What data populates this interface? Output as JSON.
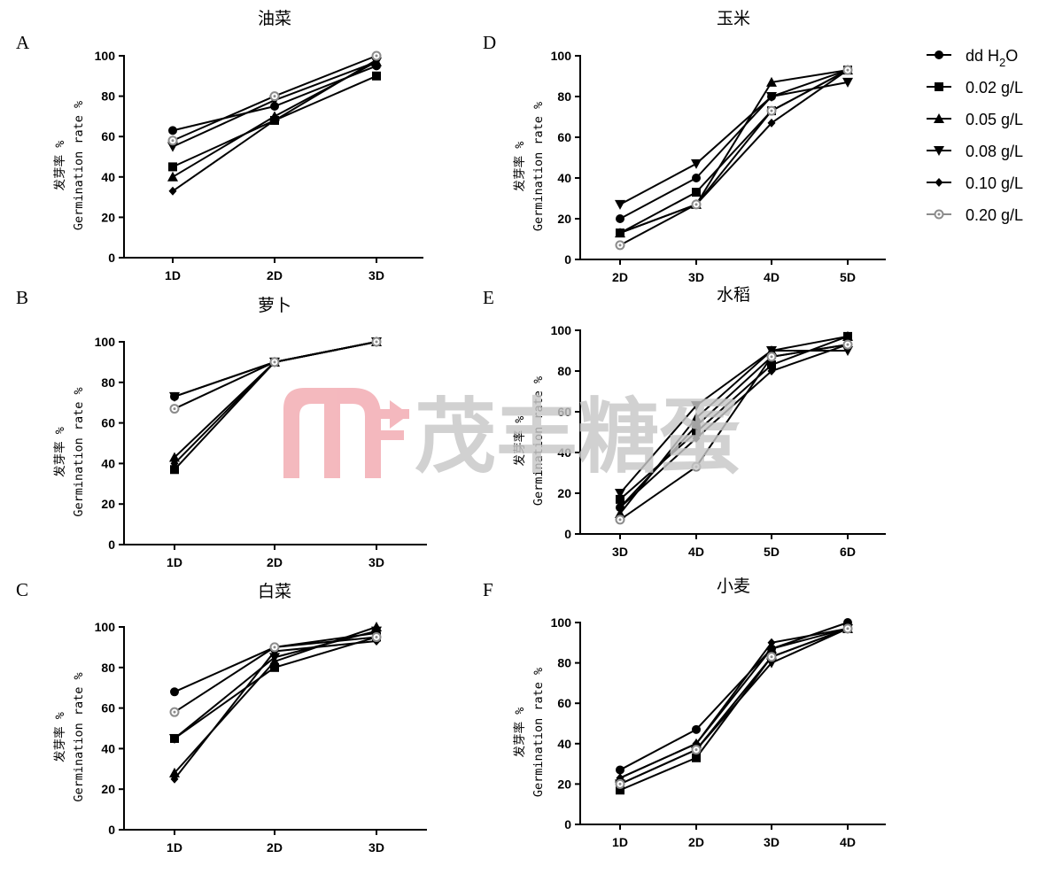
{
  "colors": {
    "line": "#000000",
    "hollow_marker": "#8c8c8c",
    "watermark_logo": "#f2a9b0",
    "watermark_text": "#c7c7c7"
  },
  "legend": {
    "items": [
      {
        "label": "dd H",
        "subscript": "2",
        "suffix": "O",
        "marker": "circle"
      },
      {
        "label": "0.02 g/L",
        "marker": "square"
      },
      {
        "label": "0.05 g/L",
        "marker": "triangle-up"
      },
      {
        "label": "0.08 g/L",
        "marker": "triangle-down"
      },
      {
        "label": "0.10 g/L",
        "marker": "diamond"
      },
      {
        "label": "0.20 g/L",
        "marker": "hollow-circle"
      }
    ]
  },
  "watermark": {
    "text": "茂丰糖蛋",
    "logo": "mf-logo"
  },
  "chart_data": [
    {
      "letter": "A",
      "title": "油菜",
      "type": "line",
      "ylabel_cn": "发芽率 %",
      "ylabel_en": "Germination rate %",
      "ylim": [
        0,
        100
      ],
      "yticks": [
        0,
        20,
        40,
        60,
        80,
        100
      ],
      "categories": [
        "1D",
        "2D",
        "3D"
      ],
      "series": [
        {
          "name": "dd H2O",
          "marker": "circle",
          "values": [
            63,
            75,
            95
          ]
        },
        {
          "name": "0.02 g/L",
          "marker": "square",
          "values": [
            45,
            68,
            90
          ]
        },
        {
          "name": "0.05 g/L",
          "marker": "triangle-up",
          "values": [
            40,
            70,
            97
          ]
        },
        {
          "name": "0.08 g/L",
          "marker": "triangle-down",
          "values": [
            55,
            78,
            97
          ]
        },
        {
          "name": "0.10 g/L",
          "marker": "diamond",
          "values": [
            33,
            68,
            98
          ]
        },
        {
          "name": "0.20 g/L",
          "marker": "hollow-circle",
          "values": [
            58,
            80,
            100
          ]
        }
      ]
    },
    {
      "letter": "B",
      "title": "萝卜",
      "type": "line",
      "ylabel_cn": "发芽率 %",
      "ylabel_en": "Germination rate %",
      "ylim": [
        0,
        100
      ],
      "yticks": [
        0,
        20,
        40,
        60,
        80,
        100
      ],
      "categories": [
        "1D",
        "2D",
        "3D"
      ],
      "series": [
        {
          "name": "dd H2O",
          "marker": "circle",
          "values": [
            73,
            90,
            100
          ]
        },
        {
          "name": "0.02 g/L",
          "marker": "square",
          "values": [
            37,
            90,
            100
          ]
        },
        {
          "name": "0.05 g/L",
          "marker": "triangle-up",
          "values": [
            43,
            90,
            100
          ]
        },
        {
          "name": "0.08 g/L",
          "marker": "triangle-down",
          "values": [
            73,
            90,
            100
          ]
        },
        {
          "name": "0.10 g/L",
          "marker": "diamond",
          "values": [
            40,
            90,
            100
          ]
        },
        {
          "name": "0.20 g/L",
          "marker": "hollow-circle",
          "values": [
            67,
            90,
            100
          ]
        }
      ]
    },
    {
      "letter": "C",
      "title": "白菜",
      "type": "line",
      "ylabel_cn": "发芽率 %",
      "ylabel_en": "Germination rate %",
      "ylim": [
        0,
        100
      ],
      "yticks": [
        0,
        20,
        40,
        60,
        80,
        100
      ],
      "categories": [
        "1D",
        "2D",
        "3D"
      ],
      "series": [
        {
          "name": "dd H2O",
          "marker": "circle",
          "values": [
            68,
            90,
            97
          ]
        },
        {
          "name": "0.02 g/L",
          "marker": "square",
          "values": [
            45,
            80,
            95
          ]
        },
        {
          "name": "0.05 g/L",
          "marker": "triangle-up",
          "values": [
            28,
            83,
            100
          ]
        },
        {
          "name": "0.08 g/L",
          "marker": "triangle-down",
          "values": [
            45,
            85,
            98
          ]
        },
        {
          "name": "0.10 g/L",
          "marker": "diamond",
          "values": [
            25,
            88,
            93
          ]
        },
        {
          "name": "0.20 g/L",
          "marker": "hollow-circle",
          "values": [
            58,
            90,
            95
          ]
        }
      ]
    },
    {
      "letter": "D",
      "title": "玉米",
      "type": "line",
      "ylabel_cn": "发芽率 %",
      "ylabel_en": "Germination rate %",
      "ylim": [
        0,
        100
      ],
      "yticks": [
        0,
        20,
        40,
        60,
        80,
        100
      ],
      "categories": [
        "2D",
        "3D",
        "4D",
        "5D"
      ],
      "series": [
        {
          "name": "dd H2O",
          "marker": "circle",
          "values": [
            20,
            40,
            80,
            93
          ]
        },
        {
          "name": "0.02 g/L",
          "marker": "square",
          "values": [
            13,
            33,
            73,
            93
          ]
        },
        {
          "name": "0.05 g/L",
          "marker": "triangle-up",
          "values": [
            13,
            27,
            87,
            93
          ]
        },
        {
          "name": "0.08 g/L",
          "marker": "triangle-down",
          "values": [
            27,
            47,
            80,
            87
          ]
        },
        {
          "name": "0.10 g/L",
          "marker": "diamond",
          "values": [
            13,
            27,
            67,
            93
          ]
        },
        {
          "name": "0.20 g/L",
          "marker": "hollow-circle",
          "values": [
            7,
            27,
            73,
            93
          ]
        }
      ]
    },
    {
      "letter": "E",
      "title": "水稻",
      "type": "line",
      "ylabel_cn": "发芽率 %",
      "ylabel_en": "Germination rate %",
      "ylim": [
        0,
        100
      ],
      "yticks": [
        0,
        20,
        40,
        60,
        80,
        100
      ],
      "categories": [
        "3D",
        "4D",
        "5D",
        "6D"
      ],
      "series": [
        {
          "name": "dd H2O",
          "marker": "circle",
          "values": [
            13,
            53,
            87,
            93
          ]
        },
        {
          "name": "0.02 g/L",
          "marker": "square",
          "values": [
            17,
            50,
            83,
            97
          ]
        },
        {
          "name": "0.05 g/L",
          "marker": "triangle-up",
          "values": [
            10,
            57,
            90,
            97
          ]
        },
        {
          "name": "0.08 g/L",
          "marker": "triangle-down",
          "values": [
            20,
            63,
            90,
            90
          ]
        },
        {
          "name": "0.10 g/L",
          "marker": "diamond",
          "values": [
            13,
            47,
            80,
            93
          ]
        },
        {
          "name": "0.20 g/L",
          "marker": "hollow-circle",
          "values": [
            7,
            33,
            87,
            93
          ]
        }
      ]
    },
    {
      "letter": "F",
      "title": "小麦",
      "type": "line",
      "ylabel_cn": "发芽率 %",
      "ylabel_en": "Germination rate %",
      "ylim": [
        0,
        100
      ],
      "yticks": [
        0,
        20,
        40,
        60,
        80,
        100
      ],
      "categories": [
        "1D",
        "2D",
        "3D",
        "4D"
      ],
      "series": [
        {
          "name": "dd H2O",
          "marker": "circle",
          "values": [
            27,
            47,
            87,
            100
          ]
        },
        {
          "name": "0.02 g/L",
          "marker": "square",
          "values": [
            17,
            33,
            83,
            97
          ]
        },
        {
          "name": "0.05 g/L",
          "marker": "triangle-up",
          "values": [
            23,
            40,
            87,
            97
          ]
        },
        {
          "name": "0.08 g/L",
          "marker": "triangle-down",
          "values": [
            20,
            37,
            80,
            97
          ]
        },
        {
          "name": "0.10 g/L",
          "marker": "diamond",
          "values": [
            23,
            40,
            90,
            97
          ]
        },
        {
          "name": "0.20 g/L",
          "marker": "hollow-circle",
          "values": [
            20,
            37,
            83,
            97
          ]
        }
      ]
    }
  ]
}
